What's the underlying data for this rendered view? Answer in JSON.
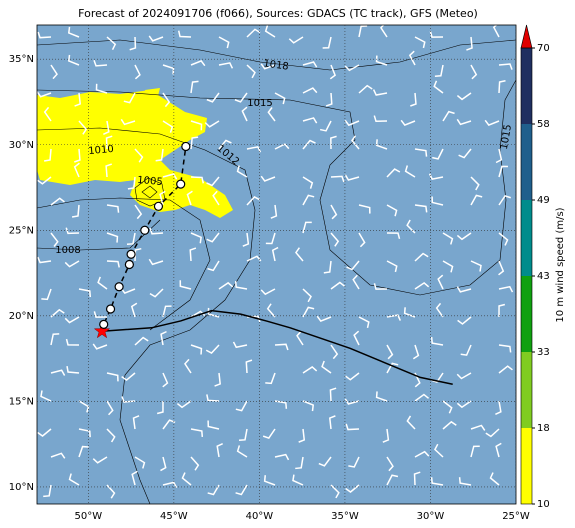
{
  "chart_data": {
    "type": "map",
    "title": "Forecast of 2024091706 (f066), Sources: GDACS (TC track), GFS (Meteo)",
    "xlim": [
      -53,
      -25
    ],
    "ylim": [
      9,
      37
    ],
    "xticks": [
      {
        "value": -50,
        "label": "50°W"
      },
      {
        "value": -45,
        "label": "45°W"
      },
      {
        "value": -40,
        "label": "40°W"
      },
      {
        "value": -35,
        "label": "35°W"
      },
      {
        "value": -30,
        "label": "30°W"
      },
      {
        "value": -25,
        "label": "25°W"
      }
    ],
    "yticks": [
      {
        "value": 10,
        "label": "10°N"
      },
      {
        "value": 15,
        "label": "15°N"
      },
      {
        "value": 20,
        "label": "20°N"
      },
      {
        "value": 25,
        "label": "25°N"
      },
      {
        "value": 30,
        "label": "30°N"
      },
      {
        "value": 35,
        "label": "35°N"
      }
    ],
    "grid": true,
    "track": {
      "lon": [
        -49.2,
        -49.1,
        -48.7,
        -48.2,
        -47.6,
        -47.5,
        -46.7,
        -45.9,
        -44.6,
        -44.3
      ],
      "lat": [
        19.1,
        19.5,
        20.4,
        21.7,
        23.0,
        23.6,
        25.0,
        26.4,
        27.7,
        29.9
      ],
      "color": "#000000"
    },
    "line": {
      "lon": [
        -49.2,
        -46.3,
        -44.6,
        -42.8,
        -41.1,
        -39.6,
        -38.2,
        -34.7,
        -30.6,
        -28.7
      ],
      "lat": [
        19.1,
        19.3,
        19.7,
        20.3,
        20.1,
        19.7,
        19.3,
        18.1,
        16.4,
        16.0
      ],
      "color": "#000000"
    },
    "isobar_labels": [
      1018,
      1015,
      1010,
      1012,
      1005,
      1008,
      1015
    ],
    "colorbar": {
      "label": "10 m wind speed (m/s)",
      "levels": [
        10,
        18,
        33,
        43,
        49,
        58,
        70
      ],
      "colors": [
        "#ffff00",
        "#80cc20",
        "#10a010",
        "#008c8c",
        "#1f5f8c",
        "#1f2f60"
      ],
      "extend_color": "#e00000"
    }
  }
}
